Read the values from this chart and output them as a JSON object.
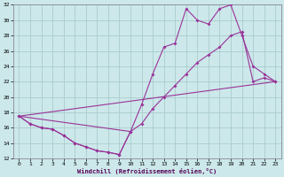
{
  "xlabel": "Windchill (Refroidissement éolien,°C)",
  "background_color": "#cce8ea",
  "grid_color": "#aacccc",
  "line_color": "#993399",
  "xlim": [
    -0.5,
    23.5
  ],
  "ylim": [
    12,
    32
  ],
  "xticks": [
    0,
    1,
    2,
    3,
    4,
    5,
    6,
    7,
    8,
    9,
    10,
    11,
    12,
    13,
    14,
    15,
    16,
    17,
    18,
    19,
    20,
    21,
    22,
    23
  ],
  "yticks": [
    12,
    14,
    16,
    18,
    20,
    22,
    24,
    26,
    28,
    30,
    32
  ],
  "line1_x": [
    0,
    1,
    2,
    3,
    4,
    5,
    6,
    7,
    8,
    9,
    10,
    11,
    12,
    13,
    14,
    15,
    16,
    17,
    18,
    19,
    20,
    21,
    22,
    23
  ],
  "line1_y": [
    17.5,
    16.5,
    16.0,
    15.8,
    15.0,
    14.0,
    13.5,
    13.0,
    12.8,
    12.5,
    15.5,
    19.0,
    23.0,
    26.5,
    27.0,
    31.5,
    30.0,
    29.5,
    31.5,
    32.0,
    28.0,
    24.0,
    23.0,
    22.0
  ],
  "line2_x": [
    0,
    1,
    2,
    3,
    4,
    5,
    6,
    7,
    8,
    9,
    10,
    11,
    12,
    13,
    14,
    15,
    16,
    17,
    18,
    19,
    20,
    21,
    22,
    23
  ],
  "line2_y": [
    17.5,
    16.5,
    16.0,
    15.8,
    15.0,
    14.0,
    13.5,
    13.0,
    12.8,
    12.5,
    15.5,
    16.5,
    18.5,
    20.0,
    21.5,
    23.0,
    24.5,
    25.5,
    26.5,
    28.0,
    28.5,
    22.0,
    22.5,
    22.0
  ],
  "line3_x": [
    0,
    23
  ],
  "line3_y": [
    17.5,
    22.0
  ],
  "line4_x": [
    0,
    10
  ],
  "line4_y": [
    17.5,
    15.5
  ]
}
